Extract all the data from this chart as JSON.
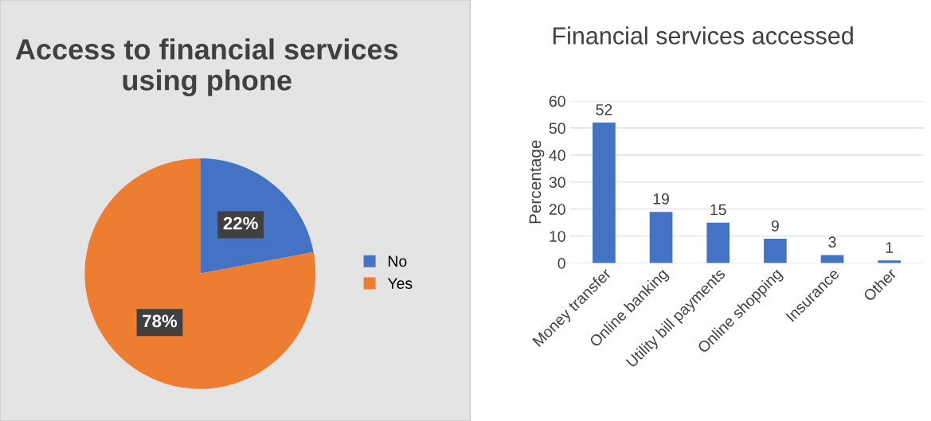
{
  "chart_data": [
    {
      "type": "pie",
      "title": "Access to financial services using phone",
      "categories": [
        "No",
        "Yes"
      ],
      "values": [
        22,
        78
      ],
      "colors": [
        "#4472c4",
        "#ed7d31"
      ],
      "value_labels": [
        "22%",
        "78%"
      ],
      "legend": "right"
    },
    {
      "type": "bar",
      "title": "Financial services accessed",
      "ylabel": "Percentage",
      "categories": [
        "Money transfer",
        "Online banking",
        "Utility bill payments",
        "Online shopping",
        "Insurance",
        "Other"
      ],
      "values": [
        52,
        19,
        15,
        9,
        3,
        1
      ],
      "color": "#4472c4",
      "ylim": [
        0,
        60
      ],
      "yticks": [
        0,
        10,
        20,
        30,
        40,
        50,
        60
      ],
      "grid": "y",
      "data_labels": true
    }
  ]
}
